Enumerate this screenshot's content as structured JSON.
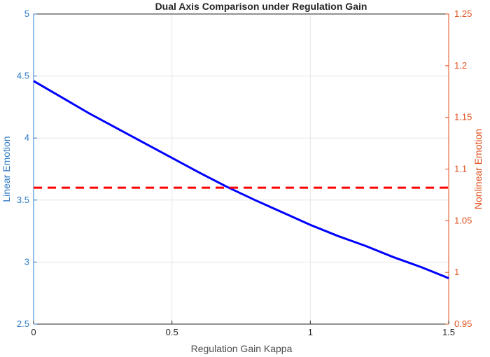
{
  "chart_data": {
    "type": "line",
    "title": "Dual Axis Comparison under Regulation Gain",
    "xlabel": "Regulation Gain Kappa",
    "ylabel_left": "Linear Emotion",
    "ylabel_right": "Nonlinear Emotion",
    "xlim": [
      0,
      1.5
    ],
    "ylim_left": [
      2.5,
      5
    ],
    "ylim_right": [
      0.95,
      1.25
    ],
    "x_ticks": [
      "0",
      "0.5",
      "1",
      "1.5"
    ],
    "y_ticks_left": [
      "2.5",
      "3",
      "3.5",
      "4",
      "4.5",
      "5"
    ],
    "y_ticks_right": [
      "0.95",
      "1",
      "1.05",
      "1.1",
      "1.15",
      "1.2",
      "1.25"
    ],
    "grid": true,
    "colors": {
      "left_axis": "#2f7bc4",
      "right_axis": "#e0501e",
      "linear": "#0000ff",
      "nonlinear": "#ff0000",
      "grid": "#e6e6e6",
      "text": "#262626"
    },
    "series": [
      {
        "axis": "left",
        "style": "solid",
        "x": [
          0,
          0.1,
          0.2,
          0.3,
          0.4,
          0.5,
          0.6,
          0.7,
          0.8,
          0.9,
          1.0,
          1.1,
          1.2,
          1.3,
          1.4,
          1.5
        ],
        "y": [
          4.46,
          4.33,
          4.2,
          4.08,
          3.96,
          3.84,
          3.72,
          3.605,
          3.5,
          3.4,
          3.3,
          3.21,
          3.13,
          3.04,
          2.96,
          2.87
        ]
      },
      {
        "axis": "right",
        "style": "dashed",
        "x": [
          0,
          1.5
        ],
        "y": [
          1.082,
          1.082
        ]
      }
    ]
  }
}
